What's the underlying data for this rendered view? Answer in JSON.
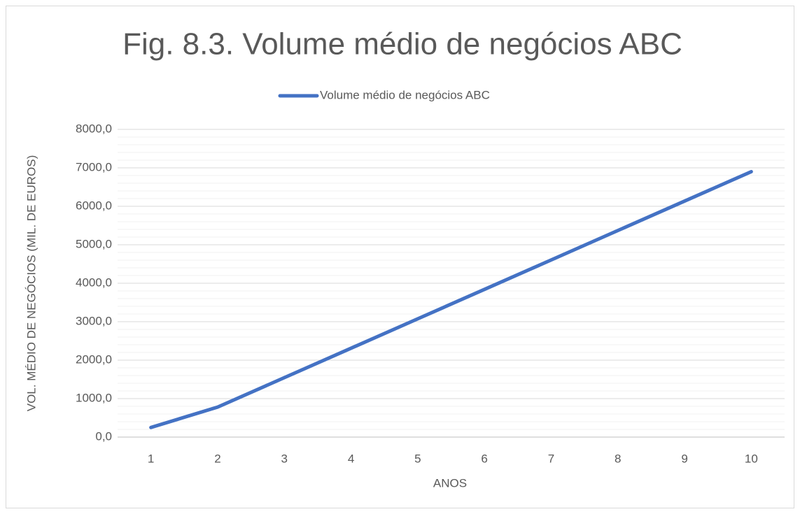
{
  "chart_data": {
    "type": "line",
    "title": "Fig. 8.3. Volume médio de negócios ABC",
    "x_label": "ANOS",
    "y_label": "VOL. MÉDIO DE NEGÓCIOS (MIL. DE EUROS)",
    "categories": [
      "1",
      "2",
      "3",
      "4",
      "5",
      "6",
      "7",
      "8",
      "9",
      "10"
    ],
    "series": [
      {
        "name": "Volume médio de negócios ABC",
        "color": "#4472c4",
        "values": [
          250,
          780,
          1545,
          2310,
          3075,
          3840,
          4605,
          5370,
          6135,
          6900
        ]
      }
    ],
    "ylim": [
      0,
      8000
    ],
    "yticks": [
      {
        "value": 0,
        "label": "0,0"
      },
      {
        "value": 1000,
        "label": "1000,0"
      },
      {
        "value": 2000,
        "label": "2000,0"
      },
      {
        "value": 3000,
        "label": "3000,0"
      },
      {
        "value": 4000,
        "label": "4000,0"
      },
      {
        "value": 5000,
        "label": "5000,0"
      },
      {
        "value": 6000,
        "label": "6000,0"
      },
      {
        "value": 7000,
        "label": "7000,0"
      },
      {
        "value": 8000,
        "label": "8000,0"
      }
    ],
    "grid": true,
    "minor_grid": true,
    "legend": "top"
  }
}
